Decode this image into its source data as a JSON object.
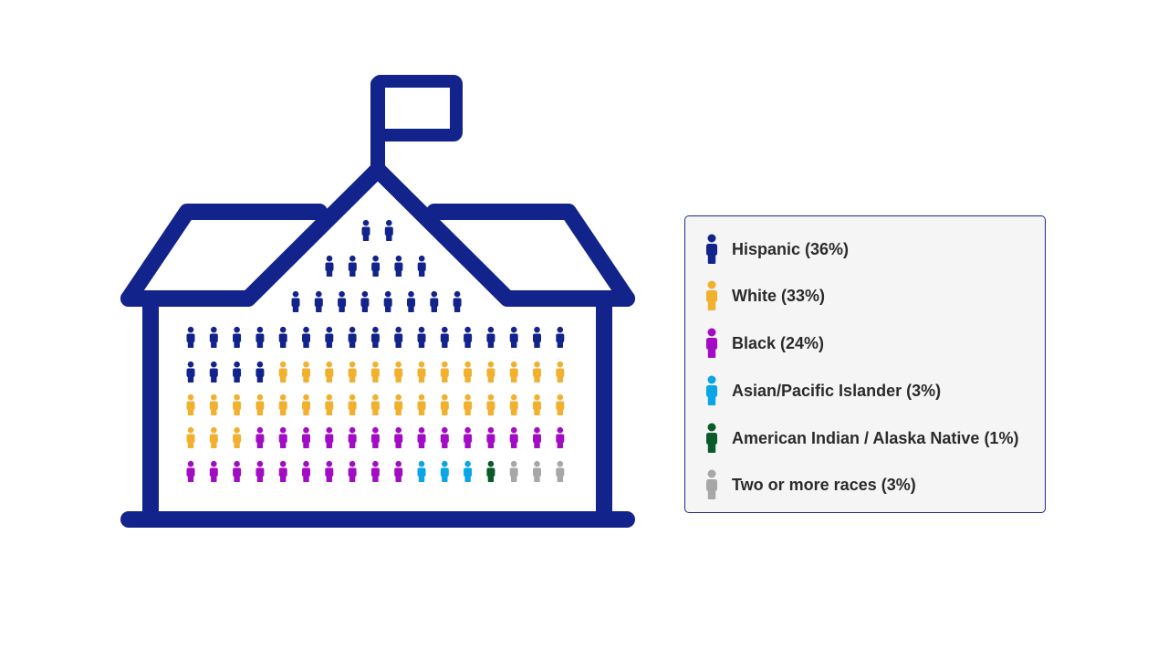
{
  "chart_data": {
    "type": "pictograph",
    "unit": "one figure per student",
    "series": [
      {
        "name": "Hispanic (36%)",
        "value": 36,
        "color": "#13238c"
      },
      {
        "name": "White (33%)",
        "value": 33,
        "color": "#f2b02f"
      },
      {
        "name": "Black (24%)",
        "value": 24,
        "color": "#a10cc4"
      },
      {
        "name": "Asian/Pacific Islander (3%)",
        "value": 3,
        "color": "#0aa5e6"
      },
      {
        "name": "American Indian / Alaska Native (1%)",
        "value": 1,
        "color": "#0b5a2a"
      },
      {
        "name": "Two or more races (3%)",
        "value": 3,
        "color": "#a7a7a7"
      }
    ],
    "legend_position": "right"
  },
  "colors": {
    "building": "#13238c",
    "legend_border": "#1a2a8c",
    "legend_bg": "#f5f5f5"
  },
  "icons": {
    "building": "school-building-icon",
    "flag": "flag-icon",
    "figure": "person-icon"
  }
}
